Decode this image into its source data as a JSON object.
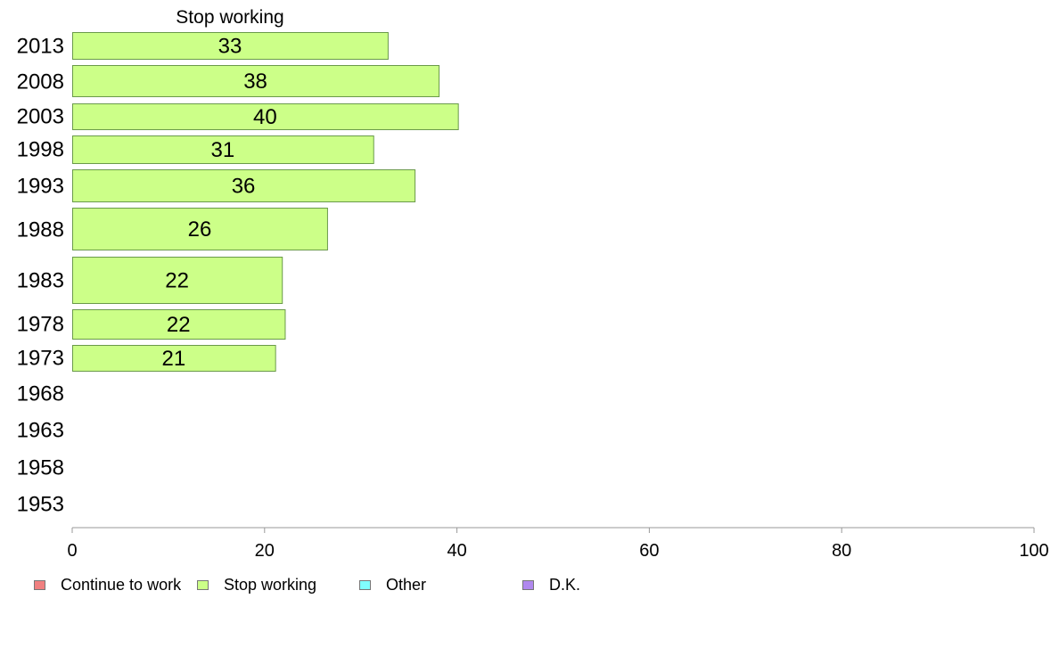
{
  "chart_data": {
    "type": "bar",
    "orientation": "horizontal",
    "title": "Stop working",
    "categories": [
      "2013",
      "2008",
      "2003",
      "1998",
      "1993",
      "1988",
      "1983",
      "1978",
      "1973",
      "1968",
      "1963",
      "1958",
      "1953"
    ],
    "series": [
      {
        "name": "Stop working",
        "values": [
          33,
          38,
          40,
          31,
          36,
          26,
          22,
          22,
          21,
          null,
          null,
          null,
          null
        ],
        "color": "#ccff88"
      }
    ],
    "xlim": [
      0,
      100
    ],
    "xticks": [
      0,
      20,
      40,
      60,
      80,
      100
    ],
    "precise_values": [
      32.8,
      38.1,
      40.1,
      31.3,
      35.6,
      26.5,
      21.8,
      22.1,
      21.1
    ],
    "grid": false,
    "legend": {
      "placement": "bottom",
      "items": [
        {
          "label": "Continue to work",
          "color": "#f08080"
        },
        {
          "label": "Stop working",
          "color": "#ccff88"
        },
        {
          "label": "Other",
          "color": "#80ffff"
        },
        {
          "label": "D.K.",
          "color": "#b088ee"
        }
      ]
    }
  }
}
